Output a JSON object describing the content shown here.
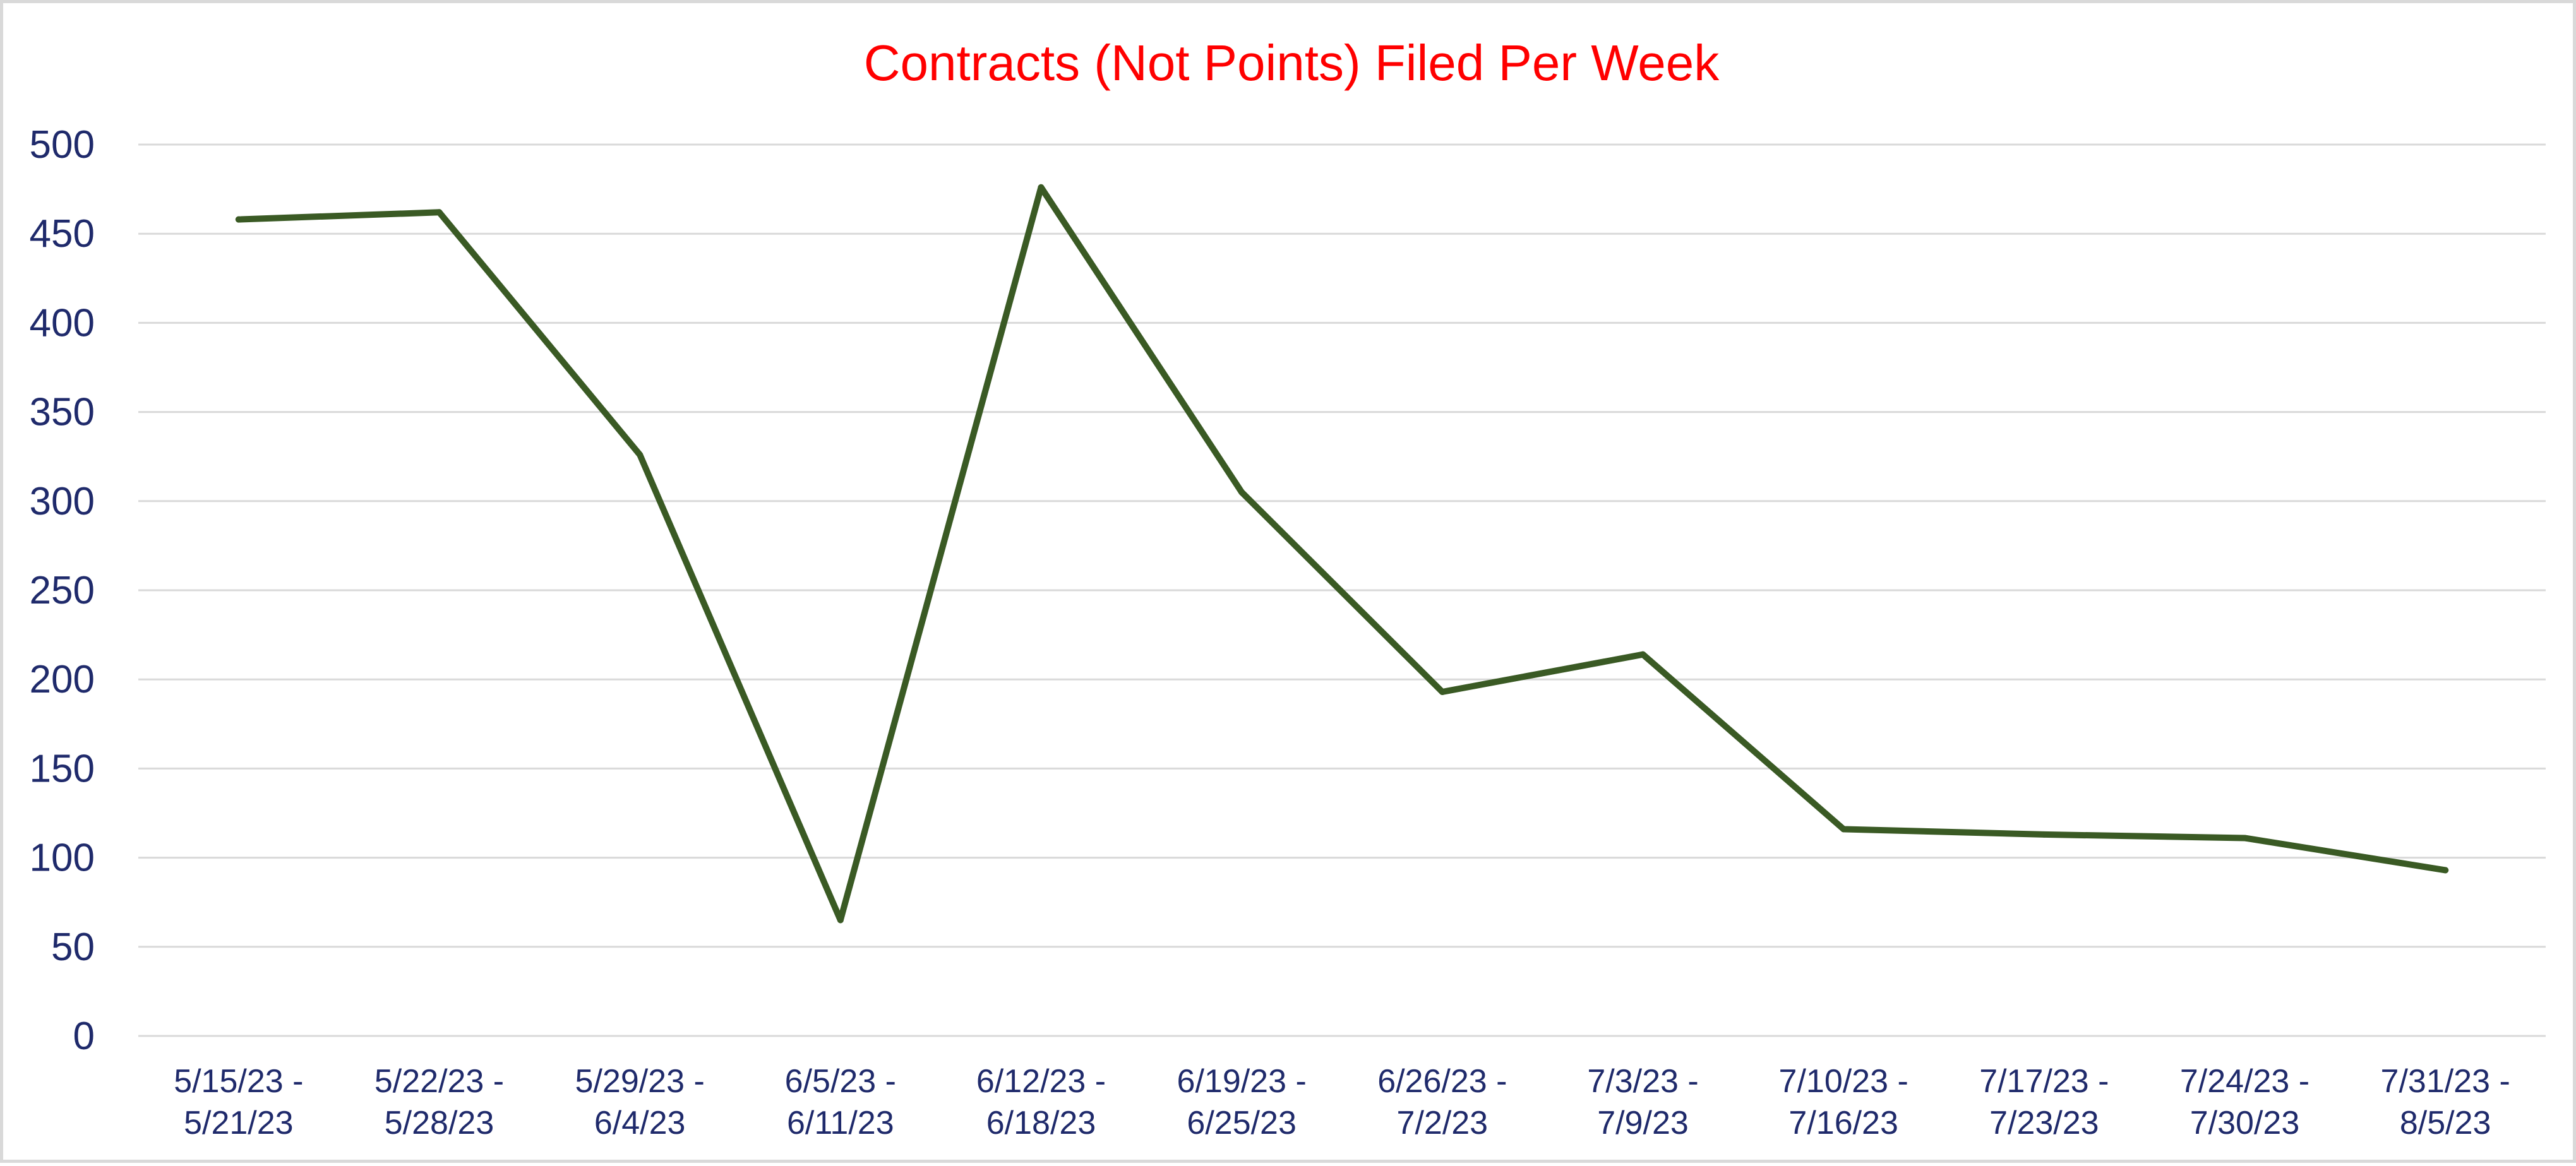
{
  "chart_data": {
    "type": "line",
    "title": "Contracts (Not Points) Filed Per Week",
    "xlabel": "",
    "ylabel": "",
    "ylim": [
      0,
      500
    ],
    "yticks": [
      0,
      50,
      100,
      150,
      200,
      250,
      300,
      350,
      400,
      450,
      500
    ],
    "grid": true,
    "legend": "none",
    "categories": [
      [
        "5/15/23 -",
        "5/21/23"
      ],
      [
        "5/22/23 -",
        "5/28/23"
      ],
      [
        "5/29/23 -",
        "6/4/23"
      ],
      [
        "6/5/23 -",
        "6/11/23"
      ],
      [
        "6/12/23 -",
        "6/18/23"
      ],
      [
        "6/19/23 -",
        "6/25/23"
      ],
      [
        "6/26/23 -",
        "7/2/23"
      ],
      [
        "7/3/23 -",
        "7/9/23"
      ],
      [
        "7/10/23 -",
        "7/16/23"
      ],
      [
        "7/17/23 -",
        "7/23/23"
      ],
      [
        "7/24/23 -",
        "7/30/23"
      ],
      [
        "7/31/23 -",
        "8/5/23"
      ]
    ],
    "series": [
      {
        "values": [
          458,
          462,
          326,
          65,
          476,
          305,
          193,
          214,
          116,
          113,
          111,
          93
        ]
      }
    ],
    "colors": {
      "title": "#ff0000",
      "axis_text": "#1f2a6b",
      "line": "#3a5a24",
      "grid": "#d9d9d9"
    }
  }
}
